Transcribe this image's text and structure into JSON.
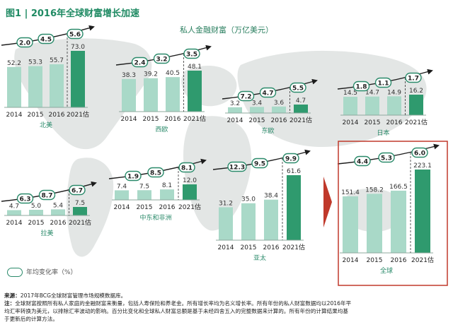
{
  "figure": {
    "title": "图1 | 2016年全球财富增长加速",
    "subtitle": "私人金融财富（万亿美元）"
  },
  "legend": {
    "label": "年均变化率（%）"
  },
  "notes": {
    "source_label": "来源：",
    "source_text": "2017年BCG全球财富管理市场规模数据库。",
    "note_label": "注：",
    "note_line1": "全球财富按照所有私人家庭的金融财富来衡量，包括人寿保险和养老金。所有增长率均为名义增长率。所有年份的私人财富数据均以2016年平",
    "note_line2": "均汇率转换为美元，以排除汇率波动的影响。百分比变化和全球私人财富总额是基于未经四舍五入的完整数据来计算的。所有年份的计算结果均基",
    "note_line3": "于更新后的计算方法。"
  },
  "chart_data": [
    {
      "type": "bar",
      "region": "北美",
      "categories": [
        "2014",
        "2015",
        "2016",
        "2021估"
      ],
      "values": [
        52.2,
        53.3,
        55.7,
        73.0
      ],
      "value_labels": [
        "52.2",
        "53.3",
        "55.7",
        "73.0"
      ],
      "growth_rates": [
        "2.0",
        "4.5",
        "5.6"
      ]
    },
    {
      "type": "bar",
      "region": "西欧",
      "categories": [
        "2014",
        "2015",
        "2016",
        "2021估"
      ],
      "values": [
        38.3,
        39.2,
        40.5,
        48.1
      ],
      "value_labels": [
        "38.3",
        "39.2",
        "40.5",
        "48.1"
      ],
      "growth_rates": [
        "2.4",
        "3.2",
        "3.5"
      ]
    },
    {
      "type": "bar",
      "region": "东欧",
      "categories": [
        "2014",
        "2015",
        "2016",
        "2021估"
      ],
      "values": [
        3.2,
        3.4,
        3.6,
        4.7
      ],
      "value_labels": [
        "3.2",
        "3.4",
        "3.6",
        "4.7"
      ],
      "growth_rates": [
        "7.2",
        "4.7",
        "5.5"
      ]
    },
    {
      "type": "bar",
      "region": "日本",
      "categories": [
        "2014",
        "2015",
        "2016",
        "2021估"
      ],
      "values": [
        14.5,
        14.7,
        14.9,
        16.2
      ],
      "value_labels": [
        "14.5",
        "14.7",
        "14.9",
        "16.2"
      ],
      "growth_rates": [
        "1.8",
        "1.1",
        "1.7"
      ]
    },
    {
      "type": "bar",
      "region": "拉美",
      "categories": [
        "2014",
        "2015",
        "2016",
        "2021估"
      ],
      "values": [
        4.7,
        5.0,
        5.4,
        7.5
      ],
      "value_labels": [
        "4.7",
        "5.0",
        "5.4",
        "7.5"
      ],
      "growth_rates": [
        "6.3",
        "8.7",
        "6.7"
      ]
    },
    {
      "type": "bar",
      "region": "中东和非洲",
      "categories": [
        "2014",
        "2015",
        "2016",
        "2021估"
      ],
      "values": [
        7.4,
        7.5,
        8.1,
        12.0
      ],
      "value_labels": [
        "7.4",
        "7.5",
        "8.1",
        "12.0"
      ],
      "growth_rates": [
        "1.9",
        "8.5",
        "8.1"
      ]
    },
    {
      "type": "bar",
      "region": "亚太",
      "categories": [
        "2014",
        "2015",
        "2016",
        "2021估"
      ],
      "values": [
        31.2,
        35.0,
        38.4,
        61.6
      ],
      "value_labels": [
        "31.2",
        "35.0",
        "38.4",
        "61.6"
      ],
      "growth_rates": [
        "12.3",
        "9.5",
        "9.9"
      ]
    },
    {
      "type": "bar",
      "region": "全球",
      "categories": [
        "2014",
        "2015",
        "2016",
        "2021估"
      ],
      "values": [
        151.4,
        158.2,
        166.5,
        223.1
      ],
      "value_labels": [
        "151.4",
        "158.2",
        "166.5",
        "223.1"
      ],
      "growth_rates": [
        "4.4",
        "5.3",
        "6.0"
      ]
    }
  ],
  "colors": {
    "title": "#1f8a63",
    "bar_history": "#a9d9c8",
    "bar_forecast": "#2f9a6e",
    "baseline": "#8fa89e",
    "region_label": "#2a8a6a",
    "oval_stroke": "#2a8a6a",
    "arrow": "#1c1c1c",
    "highlight_box": "#c0392b",
    "map_land": "#e3e6e5"
  },
  "icons": {
    "world_map": "world-map-background",
    "pointer": "red-triangle-pointer-icon",
    "oval": "growth-rate-oval-icon"
  }
}
